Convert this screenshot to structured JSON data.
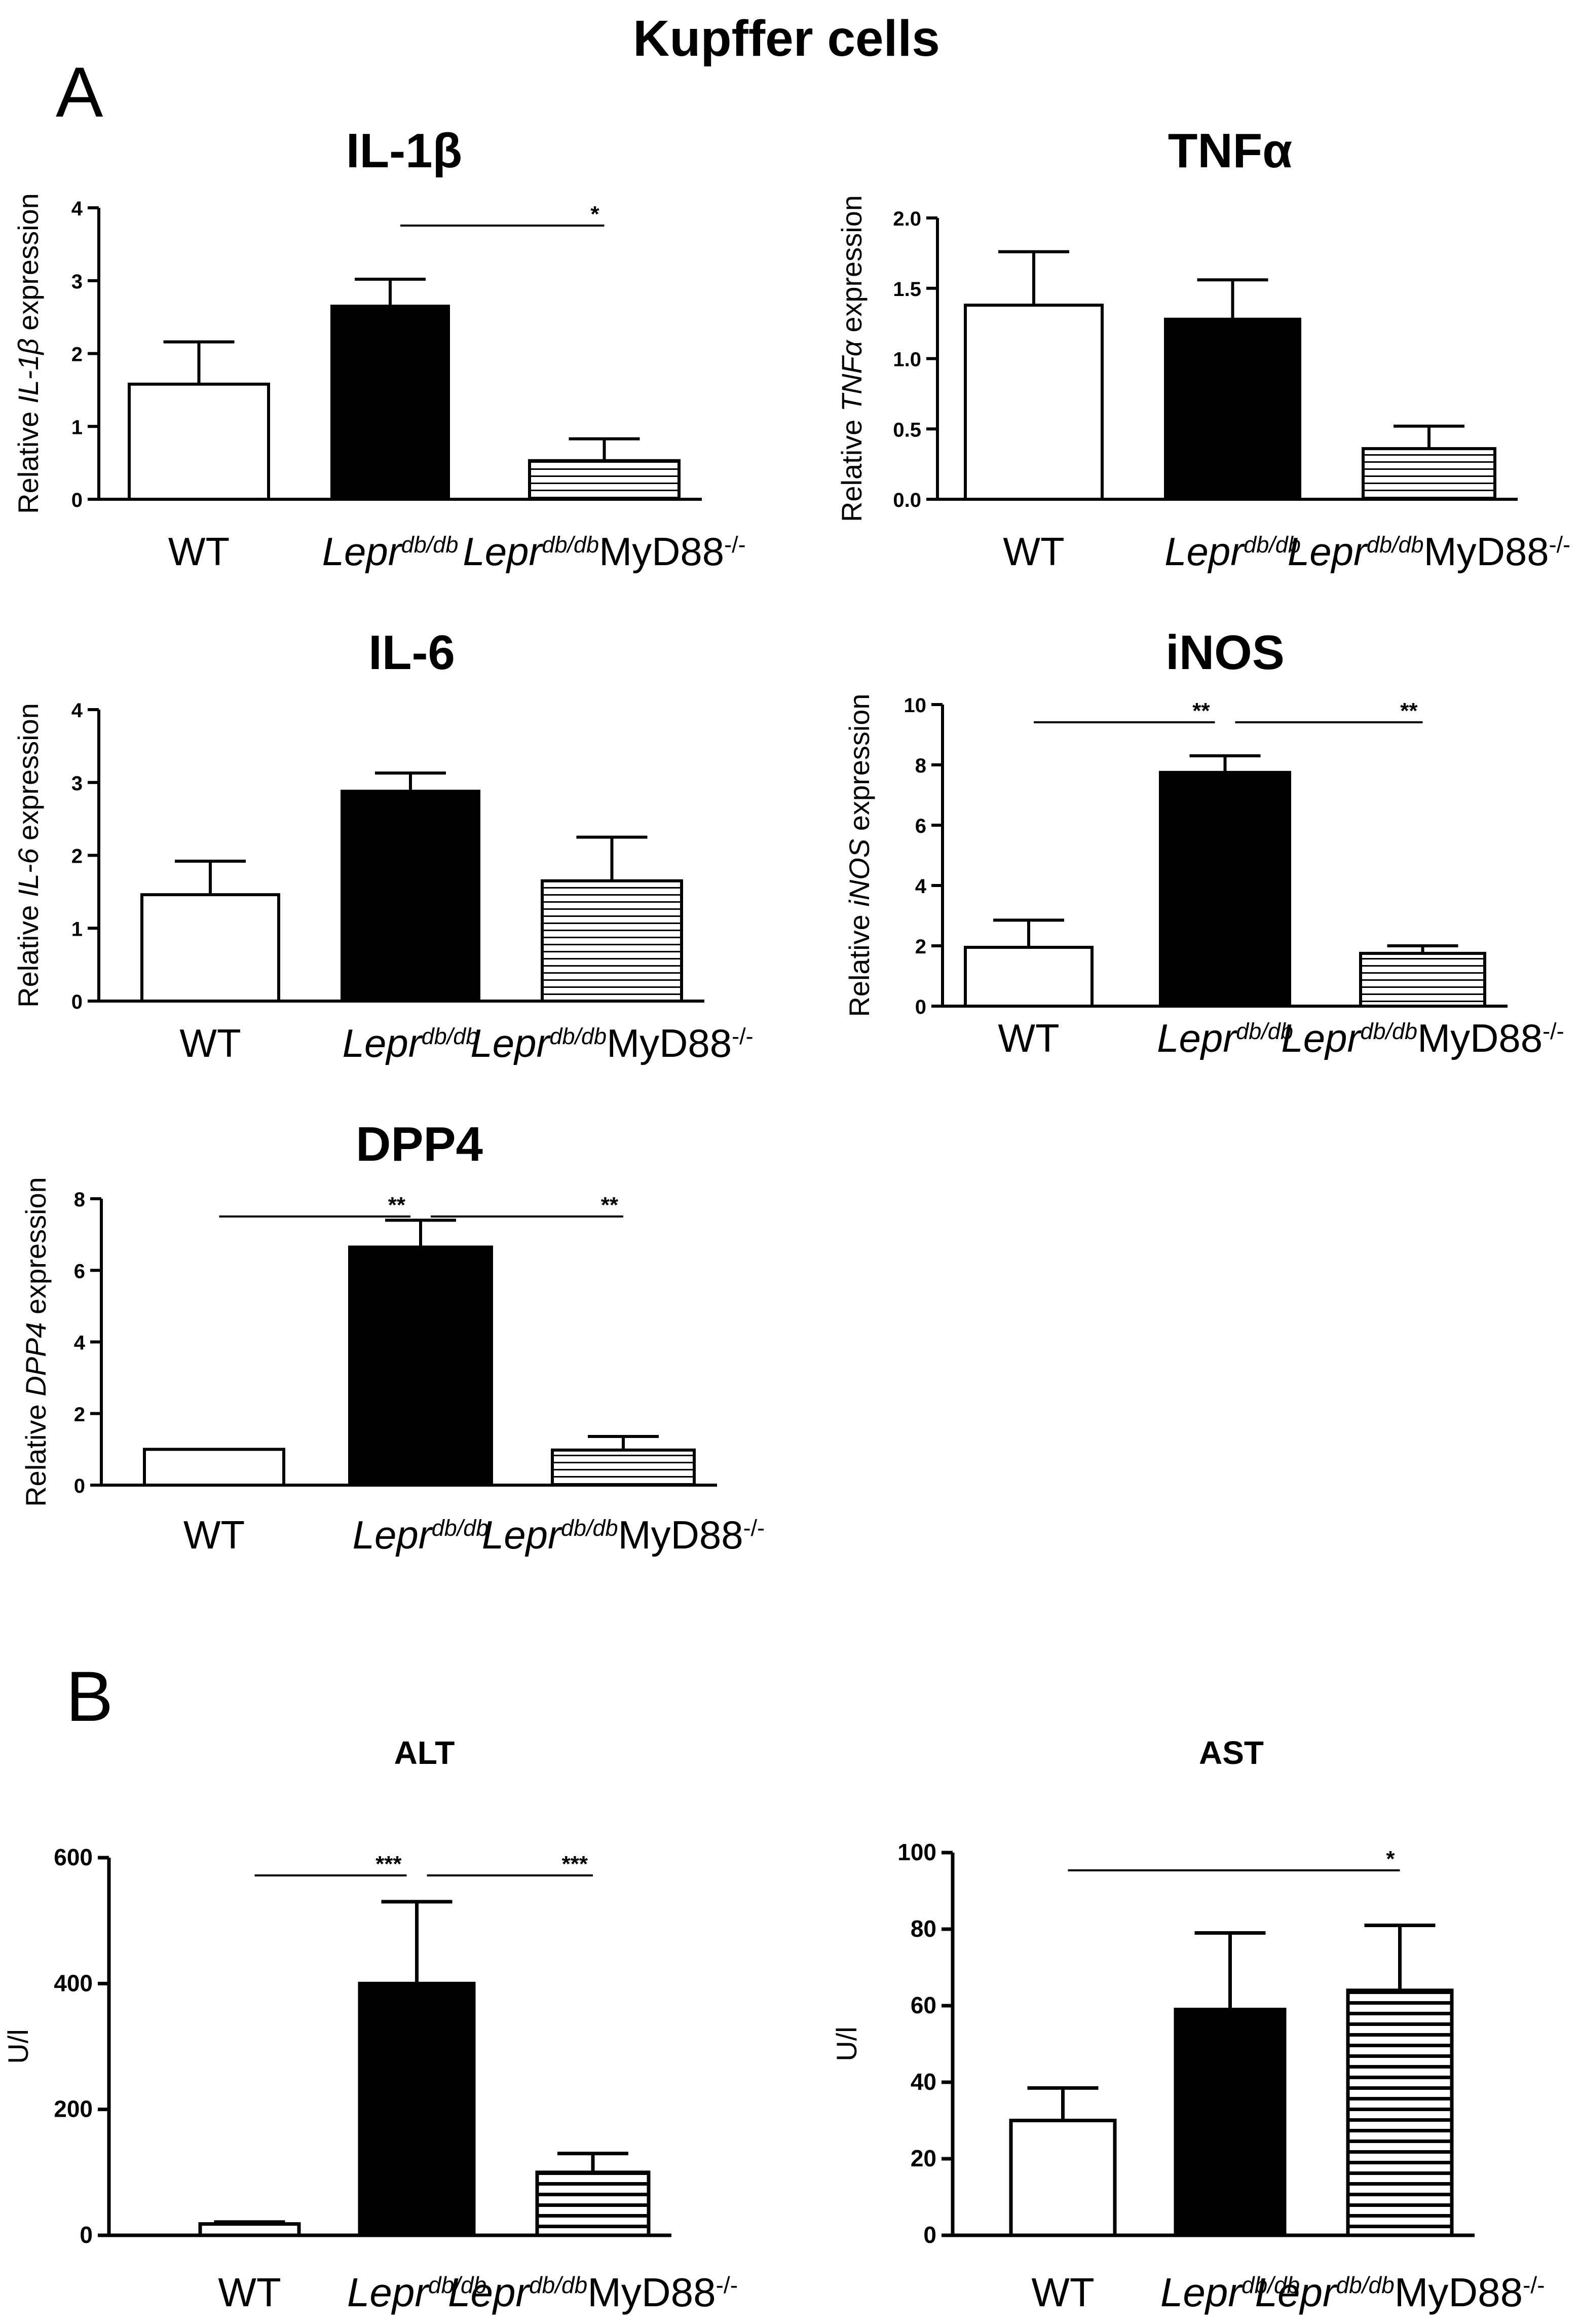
{
  "figure": {
    "title": "Kupffer cells",
    "panel_a_label": "A",
    "panel_b_label": "B"
  },
  "colors": {
    "wt_fill": "#ffffff",
    "lepr_fill": "#000000",
    "myd88_fill": "horizontal-stripes",
    "stroke": "#000000"
  },
  "chart_data": [
    {
      "type": "bar",
      "panel": "A",
      "title": "IL-1β",
      "ylabel": {
        "pre": "Relative ",
        "gene": "IL-1β",
        "post": " expression"
      },
      "categories": [
        "WT",
        "Lepr db/db",
        "Lepr db/db MyD88-/-"
      ],
      "values": [
        1.58,
        2.65,
        0.53
      ],
      "errors": [
        0.58,
        0.37,
        0.3
      ],
      "ylim": [
        0,
        4
      ],
      "yticks": [
        "0",
        "1",
        "2",
        "3",
        "4"
      ],
      "significance": [
        {
          "from": 1,
          "to": 2,
          "label": "*"
        }
      ]
    },
    {
      "type": "bar",
      "panel": "A",
      "title": "TNFα",
      "ylabel": {
        "pre": "Relative ",
        "gene": "TNFα",
        "post": " expression"
      },
      "categories": [
        "WT",
        "Lepr db/db",
        "Lepr db/db MyD88-/-"
      ],
      "values": [
        1.38,
        1.28,
        0.36
      ],
      "errors": [
        0.38,
        0.28,
        0.16
      ],
      "ylim": [
        0,
        2.0
      ],
      "yticks": [
        "0.0",
        "0.5",
        "1.0",
        "1.5",
        "2.0"
      ],
      "significance": []
    },
    {
      "type": "bar",
      "panel": "A",
      "title": "IL-6",
      "ylabel": {
        "pre": "Relative ",
        "gene": "IL-6",
        "post": " expression"
      },
      "categories": [
        "WT",
        "Lepr db/db",
        "Lepr db/db MyD88-/-"
      ],
      "values": [
        1.46,
        2.88,
        1.65
      ],
      "errors": [
        0.46,
        0.25,
        0.6
      ],
      "ylim": [
        0,
        4
      ],
      "yticks": [
        "0",
        "1",
        "2",
        "3",
        "4"
      ],
      "significance": []
    },
    {
      "type": "bar",
      "panel": "A",
      "title": "iNOS",
      "ylabel": {
        "pre": "Relative ",
        "gene": "iNOS",
        "post": " expression"
      },
      "categories": [
        "WT",
        "Lepr db/db",
        "Lepr db/db MyD88-/-"
      ],
      "values": [
        1.95,
        7.75,
        1.75
      ],
      "errors": [
        0.9,
        0.55,
        0.25
      ],
      "ylim": [
        0,
        10
      ],
      "yticks": [
        "0",
        "2",
        "4",
        "6",
        "8",
        "10"
      ],
      "significance": [
        {
          "from": 0,
          "to": 1,
          "label": "**"
        },
        {
          "from": 1,
          "to": 2,
          "label": "**"
        }
      ]
    },
    {
      "type": "bar",
      "panel": "A",
      "title": "DPP4",
      "ylabel": {
        "pre": "Relative ",
        "gene": "DPP4",
        "post": " expression"
      },
      "categories": [
        "WT",
        "Lepr db/db",
        "Lepr db/db MyD88-/-"
      ],
      "values": [
        1.0,
        6.65,
        0.98
      ],
      "errors": [
        0.0,
        0.75,
        0.38
      ],
      "ylim": [
        0,
        8
      ],
      "yticks": [
        "0",
        "2",
        "4",
        "6",
        "8"
      ],
      "significance": [
        {
          "from": 0,
          "to": 1,
          "label": "**"
        },
        {
          "from": 1,
          "to": 2,
          "label": "**"
        }
      ]
    },
    {
      "type": "bar",
      "panel": "B",
      "title": "ALT",
      "ylabel": {
        "pre": "",
        "gene": "",
        "post": "U/l"
      },
      "categories": [
        "WT",
        "Lepr db/db",
        "Lepr db/db MyD88-/-"
      ],
      "values": [
        18,
        400,
        100
      ],
      "errors": [
        3,
        130,
        30
      ],
      "ylim": [
        0,
        600
      ],
      "yticks": [
        "0",
        "200",
        "400",
        "600"
      ],
      "significance": [
        {
          "from": 0,
          "to": 1,
          "label": "***"
        },
        {
          "from": 1,
          "to": 2,
          "label": "***"
        }
      ]
    },
    {
      "type": "bar",
      "panel": "B",
      "title": "AST",
      "ylabel": {
        "pre": "",
        "gene": "",
        "post": "U/l"
      },
      "categories": [
        "WT",
        "Lepr db/db",
        "Lepr db/db MyD88-/-"
      ],
      "values": [
        30,
        59,
        64
      ],
      "errors": [
        8.5,
        20,
        17
      ],
      "ylim": [
        0,
        100
      ],
      "yticks": [
        "0",
        "20",
        "40",
        "60",
        "80",
        "100"
      ],
      "significance": [
        {
          "from": 0,
          "to": 2,
          "label": "*"
        }
      ]
    }
  ]
}
